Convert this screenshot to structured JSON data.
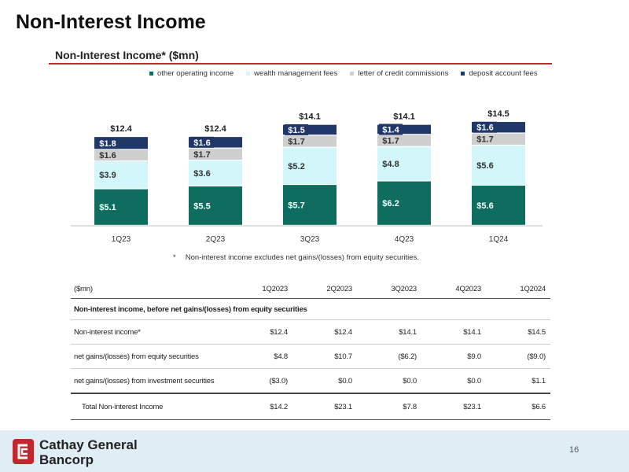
{
  "page": {
    "title": "Non-Interest Income",
    "page_number": "16",
    "footnote_marker": "*",
    "footnote": "Non-interest income excludes net gains/(losses) from equity securities."
  },
  "logo": {
    "line1": "Cathay General",
    "line2": "Bancorp",
    "accent_color": "#c0282d"
  },
  "colors": {
    "title_rule": "#c0282d",
    "footer_band": "#deeef4"
  },
  "chart_data": {
    "type": "bar",
    "stacked": true,
    "title": "Non-Interest Income* ($mn)",
    "categories": [
      "1Q23",
      "2Q23",
      "3Q23",
      "4Q23",
      "1Q24"
    ],
    "series": [
      {
        "name": "other operating income",
        "color": "#0e6d5e",
        "values": [
          5.1,
          5.5,
          5.7,
          6.2,
          5.6
        ],
        "labels": [
          "$5.1",
          "$5.5",
          "$5.7",
          "$6.2",
          "$5.6"
        ],
        "label_color": "#ffffff"
      },
      {
        "name": "wealth management fees",
        "color": "#d3f6fa",
        "values": [
          3.9,
          3.6,
          5.2,
          4.8,
          5.6
        ],
        "labels": [
          "$3.9",
          "$3.6",
          "$5.2",
          "$4.8",
          "$5.6"
        ],
        "label_color": "#333333"
      },
      {
        "name": "letter of credit commissions",
        "color": "#cfcfcf",
        "values": [
          1.6,
          1.7,
          1.7,
          1.7,
          1.7
        ],
        "labels": [
          "$1.6",
          "$1.7",
          "$1.7",
          "$1.7",
          "$1.7"
        ],
        "label_color": "#333333"
      },
      {
        "name": "deposit account fees",
        "color": "#1f3769",
        "values": [
          1.8,
          1.6,
          1.5,
          1.4,
          1.6
        ],
        "labels": [
          "$1.8",
          "$1.6",
          "$1.5",
          "$1.4",
          "$1.6"
        ],
        "label_color": "#ffffff"
      }
    ],
    "totals": [
      "$12.4",
      "$12.4",
      "$14.1",
      "$14.1",
      "$14.5"
    ],
    "legend_position": "top",
    "grid": false,
    "ylim": [
      0,
      16
    ]
  },
  "table": {
    "headers": [
      "($mn)",
      "1Q2023",
      "2Q2023",
      "3Q2023",
      "4Q2023",
      "1Q2024"
    ],
    "section_title": "Non-interest income, before net gains/(losses) from equity securities",
    "rows": [
      {
        "label": "Non-interest income*",
        "values": [
          "$12.4",
          "$12.4",
          "$14.1",
          "$14.1",
          "$14.5"
        ]
      },
      {
        "label": "net gains/(losses) from equity securities",
        "values": [
          "$4.8",
          "$10.7",
          "($6.2)",
          "$9.0",
          "($9.0)"
        ]
      },
      {
        "label": "net gains/(losses) from investment securities",
        "values": [
          "($3.0)",
          "$0.0",
          "$0.0",
          "$0.0",
          "$1.1"
        ]
      }
    ],
    "total": {
      "label": "Total Non-interest Income",
      "values": [
        "$14.2",
        "$23.1",
        "$7.8",
        "$23.1",
        "$6.6"
      ]
    }
  }
}
